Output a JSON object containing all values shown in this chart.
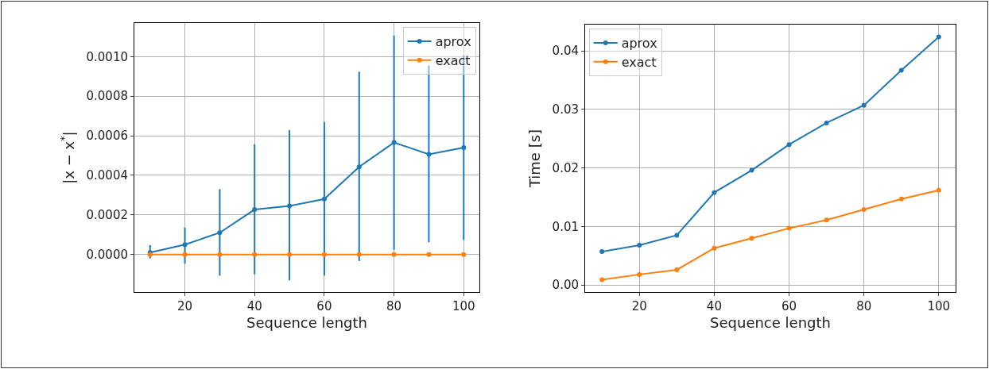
{
  "chart_data": [
    {
      "type": "line",
      "xlabel": "Sequence length",
      "ylabel": "|x − x$^{*}$|",
      "x": [
        10,
        20,
        30,
        40,
        50,
        60,
        70,
        80,
        90,
        100
      ],
      "series": [
        {
          "name": "aprox",
          "color": "#1f77b4",
          "values": [
            1e-05,
            5e-05,
            0.00011,
            0.000227,
            0.000245,
            0.00028,
            0.000443,
            0.000566,
            0.000506,
            0.00054
          ],
          "errors": [
            [
              -2e-05,
              4.7e-05
            ],
            [
              -4.7e-05,
              0.000136
            ],
            [
              -0.000107,
              0.00033
            ],
            [
              -0.0001,
              0.000557
            ],
            [
              -0.000131,
              0.000629
            ],
            [
              -0.000107,
              0.00067
            ],
            [
              -3.3e-05,
              0.000924
            ],
            [
              2.4e-05,
              0.001107
            ],
            [
              6.2e-05,
              0.000956
            ],
            [
              7.3e-05,
              0.001007
            ]
          ]
        },
        {
          "name": "exact",
          "color": "#ff7f0e",
          "values": [
            0,
            0,
            0,
            0,
            0,
            0,
            0,
            0,
            0,
            0
          ]
        }
      ],
      "xlim": [
        5.5,
        104.5
      ],
      "xticks": [
        20,
        40,
        60,
        80,
        100
      ],
      "ylim": [
        -0.00019,
        0.00117
      ],
      "yticks": [
        {
          "value": 0,
          "label": "0.0000"
        },
        {
          "value": 0.0002,
          "label": "0.0002"
        },
        {
          "value": 0.0004,
          "label": "0.0004"
        },
        {
          "value": 0.0006,
          "label": "0.0006"
        },
        {
          "value": 0.0008,
          "label": "0.0008"
        },
        {
          "value": 0.001,
          "label": "0.0010"
        }
      ],
      "grid": true,
      "legend": "top right",
      "marker": "circle",
      "line_style": "solid"
    },
    {
      "type": "line",
      "xlabel": "Sequence length",
      "ylabel": "Time [s]",
      "x": [
        10,
        20,
        30,
        40,
        50,
        60,
        70,
        80,
        90,
        100
      ],
      "series": [
        {
          "name": "aprox",
          "color": "#1f77b4",
          "values": [
            0.0057,
            0.0068,
            0.0085,
            0.0158,
            0.0196,
            0.024,
            0.0277,
            0.0307,
            0.0367,
            0.0424
          ]
        },
        {
          "name": "exact",
          "color": "#ff7f0e",
          "values": [
            0.0009,
            0.0018,
            0.0026,
            0.0063,
            0.008,
            0.0097,
            0.0111,
            0.0129,
            0.0147,
            0.0162
          ]
        }
      ],
      "xlim": [
        5.5,
        104.5
      ],
      "xticks": [
        20,
        40,
        60,
        80,
        100
      ],
      "ylim": [
        -0.0012,
        0.0445
      ],
      "yticks": [
        {
          "value": 0,
          "label": "0.00"
        },
        {
          "value": 0.01,
          "label": "0.01"
        },
        {
          "value": 0.02,
          "label": "0.02"
        },
        {
          "value": 0.03,
          "label": "0.03"
        },
        {
          "value": 0.04,
          "label": "0.04"
        }
      ],
      "grid": true,
      "legend": "top left",
      "marker": "circle",
      "line_style": "solid"
    }
  ]
}
